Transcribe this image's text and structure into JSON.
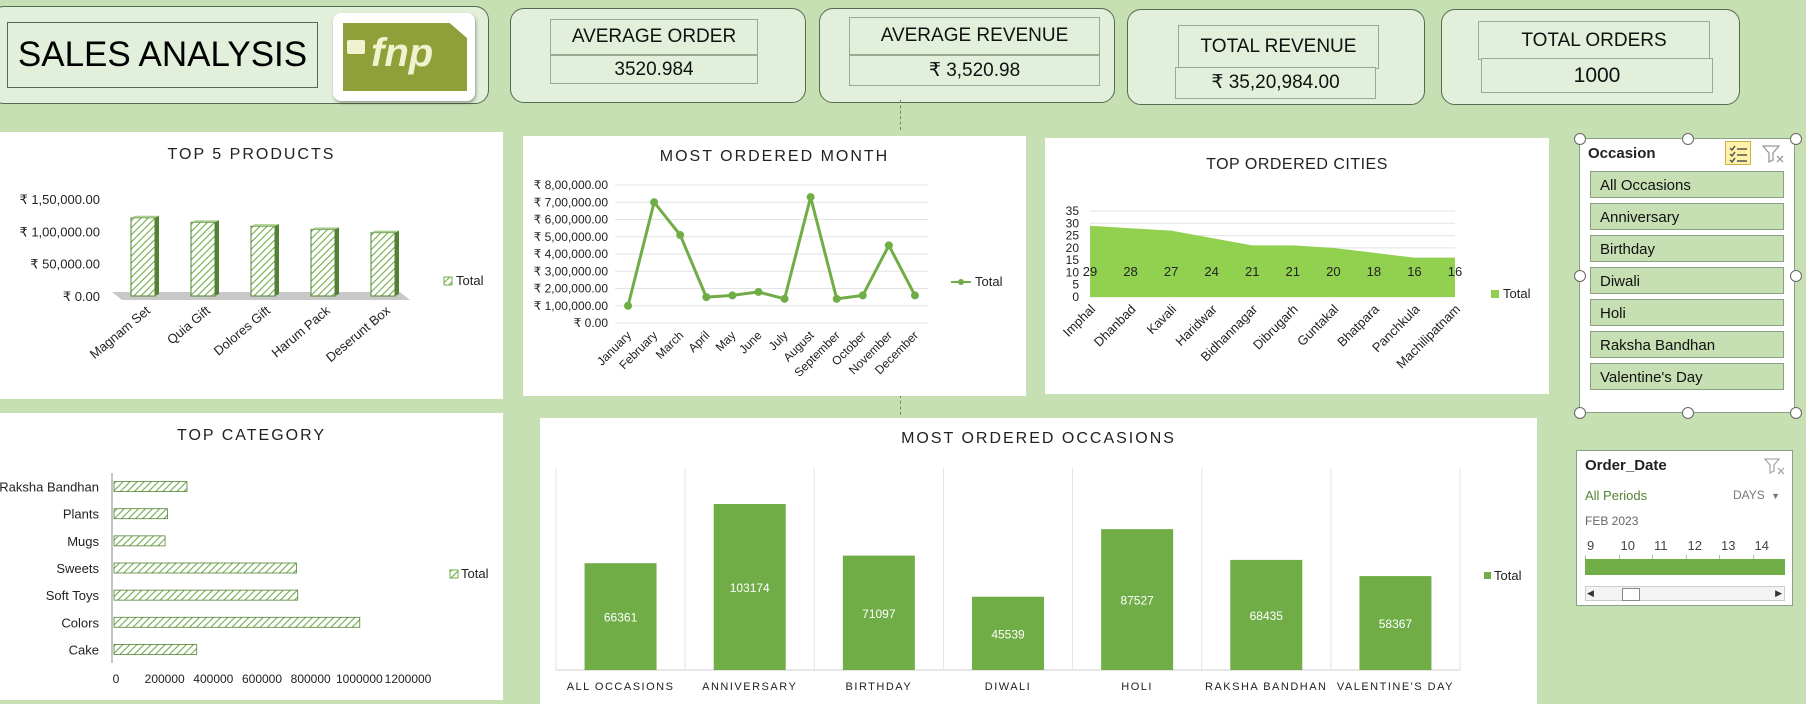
{
  "header": {
    "title": "SALES ANALYSIS",
    "logo_text": "fnp"
  },
  "kpis": [
    {
      "label": "AVERAGE ORDER",
      "value": "3520.984"
    },
    {
      "label": "AVERAGE REVENUE",
      "value": "₹ 3,520.98"
    },
    {
      "label": "TOTAL REVENUE",
      "value": "₹ 35,20,984.00"
    },
    {
      "label": "TOTAL  ORDERS",
      "value": "1000"
    }
  ],
  "chart_data": [
    {
      "id": "top5",
      "type": "bar",
      "title": "TOP 5 PRODUCTS",
      "categories": [
        "Magnam Set",
        "Quia Gift",
        "Dolores Gift",
        "Harum Pack",
        "Deserunt Box"
      ],
      "series": [
        {
          "name": "Total",
          "values": [
            121000,
            114000,
            108000,
            103000,
            98000
          ]
        }
      ],
      "y_ticks": [
        "₹ 1,50,000.00",
        "₹ 1,00,000.00",
        "₹ 50,000.00",
        "₹ 0.00"
      ],
      "ylim": [
        0,
        150000
      ],
      "legend": "right"
    },
    {
      "id": "month",
      "type": "line",
      "title": "MOST ORDERED MONTH",
      "categories": [
        "January",
        "February",
        "March",
        "April",
        "May",
        "June",
        "July",
        "August",
        "September",
        "October",
        "November",
        "December"
      ],
      "series": [
        {
          "name": "Total",
          "values": [
            100000,
            700000,
            510000,
            150000,
            160000,
            180000,
            140000,
            730000,
            140000,
            160000,
            450000,
            160000
          ]
        }
      ],
      "y_ticks": [
        "₹ 8,00,000.00",
        "₹ 7,00,000.00",
        "₹ 6,00,000.00",
        "₹ 5,00,000.00",
        "₹ 4,00,000.00",
        "₹ 3,00,000.00",
        "₹ 2,00,000.00",
        "₹ 1,00,000.00",
        "₹ 0.00"
      ],
      "ylim": [
        0,
        800000
      ],
      "legend": "right"
    },
    {
      "id": "cities",
      "type": "area",
      "title": "TOP ORDERED CITIES",
      "categories": [
        "Imphal",
        "Dhanbad",
        "Kavali",
        "Haridwar",
        "Bidhannagar",
        "Dibrugarh",
        "Guntakal",
        "Bhatpara",
        "Panchkula",
        "Machilipatnam"
      ],
      "series": [
        {
          "name": "Total",
          "values": [
            29,
            28,
            27,
            24,
            21,
            21,
            20,
            18,
            16,
            16
          ]
        }
      ],
      "y_ticks": [
        "35",
        "30",
        "25",
        "20",
        "15",
        "10",
        "5",
        "0"
      ],
      "ylim": [
        0,
        35
      ],
      "legend": "right"
    },
    {
      "id": "category",
      "type": "bar",
      "orientation": "horizontal",
      "title": "TOP CATEGORY",
      "categories": [
        "Raksha Bandhan",
        "Plants",
        "Mugs",
        "Sweets",
        "Soft Toys",
        "Colors",
        "Cake"
      ],
      "series": [
        {
          "name": "Total",
          "values": [
            300000,
            220000,
            210000,
            750000,
            755000,
            1010000,
            340000
          ]
        }
      ],
      "x_ticks": [
        "0",
        "200000",
        "400000",
        "600000",
        "800000",
        "1000000",
        "1200000"
      ],
      "xlim": [
        0,
        1200000
      ],
      "legend": "right"
    },
    {
      "id": "occasions",
      "type": "bar",
      "title": "MOST ORDERED OCCASIONS",
      "categories": [
        "ALL OCCASIONS",
        "ANNIVERSARY",
        "BIRTHDAY",
        "DIWALI",
        "HOLI",
        "RAKSHA BANDHAN",
        "VALENTINE'S DAY"
      ],
      "series": [
        {
          "name": "Total",
          "values": [
            66361,
            103174,
            71097,
            45539,
            87527,
            68435,
            58367
          ]
        }
      ],
      "data_labels": [
        "66361",
        "103174",
        "71097",
        "45539",
        "87527",
        "68435",
        "58367"
      ],
      "ylim": [
        0,
        110000
      ],
      "legend": "right"
    }
  ],
  "slicer_occasion": {
    "title": "Occasion",
    "items": [
      "All Occasions",
      "Anniversary",
      "Birthday",
      "Diwali",
      "Holi",
      "Raksha Bandhan",
      "Valentine's Day"
    ]
  },
  "timeline": {
    "title": "Order_Date",
    "periods_label": "All Periods",
    "level": "DAYS",
    "month": "FEB 2023",
    "days": [
      "9",
      "10",
      "11",
      "12",
      "13",
      "14"
    ]
  },
  "colors": {
    "bar": "#70ad47",
    "bar_dark": "#548235",
    "background": "#c6e0b4",
    "kpi_bg": "#e2efda"
  }
}
